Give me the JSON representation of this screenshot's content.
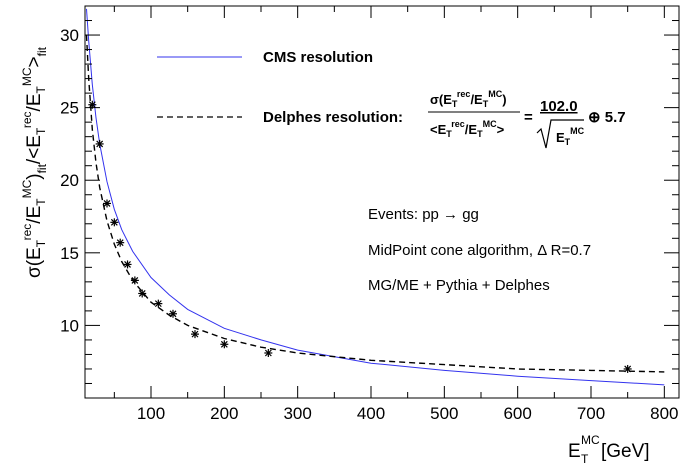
{
  "chart_data": {
    "type": "line",
    "xlim": [
      10,
      820
    ],
    "ylim": [
      5,
      32
    ],
    "x_ticks": [
      100,
      200,
      300,
      400,
      500,
      600,
      700,
      800
    ],
    "y_ticks": [
      10,
      15,
      20,
      25,
      30
    ],
    "x_tick_labels": [
      "100",
      "200",
      "300",
      "400",
      "500",
      "600",
      "700",
      "800"
    ],
    "y_tick_labels": [
      "10",
      "15",
      "20",
      "25",
      "30"
    ],
    "xlabel": {
      "base": "E",
      "sub": "T",
      "sup": "MC",
      "unit": "[GeV]"
    },
    "ylabel": "σ(E_T^rec/E_T^MC)_fit/<E_T^rec/E_T^MC>_fit",
    "grid": false,
    "series": [
      {
        "name": "CMS resolution",
        "style": "solid",
        "color": "#3333ee",
        "x": [
          12,
          15,
          20,
          25,
          30,
          40,
          50,
          60,
          75,
          100,
          125,
          150,
          200,
          250,
          300,
          400,
          500,
          600,
          700,
          800
        ],
        "y": [
          31.8,
          29.6,
          26.6,
          24.3,
          22.5,
          19.9,
          18.0,
          16.6,
          15.1,
          13.3,
          12.1,
          11.1,
          9.8,
          9.0,
          8.3,
          7.4,
          6.9,
          6.5,
          6.2,
          5.9
        ]
      },
      {
        "name": "Delphes resolution",
        "style": "dashed",
        "color": "#000000",
        "x": [
          12,
          15,
          20,
          25,
          30,
          40,
          50,
          60,
          75,
          100,
          125,
          150,
          200,
          250,
          300,
          400,
          500,
          600,
          700,
          800
        ],
        "y": [
          30.0,
          27.0,
          23.5,
          21.2,
          19.5,
          17.2,
          15.6,
          14.4,
          13.1,
          11.6,
          10.7,
          10.0,
          9.1,
          8.5,
          8.1,
          7.6,
          7.3,
          7.0,
          6.9,
          6.8
        ]
      },
      {
        "name": "points",
        "style": "marker",
        "color": "#000000",
        "x": [
          20,
          30,
          40,
          50,
          58,
          68,
          78,
          88,
          110,
          130,
          160,
          200,
          260,
          750
        ],
        "y": [
          25.2,
          22.5,
          18.4,
          17.1,
          15.7,
          14.2,
          13.1,
          12.2,
          11.5,
          10.8,
          9.4,
          8.7,
          8.1,
          7.0
        ]
      }
    ],
    "legend": {
      "cms_label": "CMS resolution",
      "delphes_label": "Delphes resolution:",
      "formula_num": "102.0",
      "formula_const": "⊕ 5.7"
    },
    "annotations": [
      "Events: pp → gg",
      "MidPoint cone algorithm, Δ R=0.7",
      "MG/ME + Pythia + Delphes"
    ]
  }
}
